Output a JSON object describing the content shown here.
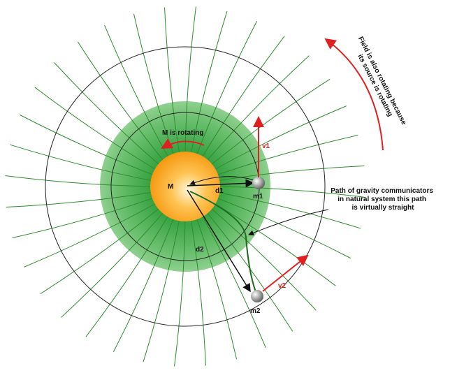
{
  "labels": {
    "rotating": "M is rotating",
    "mass_center": "M",
    "d1": "d1",
    "m1": "m1",
    "v1": "v1",
    "d2": "d2",
    "m2": "m2",
    "v2": "v2"
  },
  "annotation": {
    "lines": [
      "Path of gravity communicators",
      "in natural system this path",
      "is virtually straight"
    ]
  },
  "field_note": {
    "lines": [
      "Field is also rotating because",
      "its source is rotating"
    ]
  }
}
